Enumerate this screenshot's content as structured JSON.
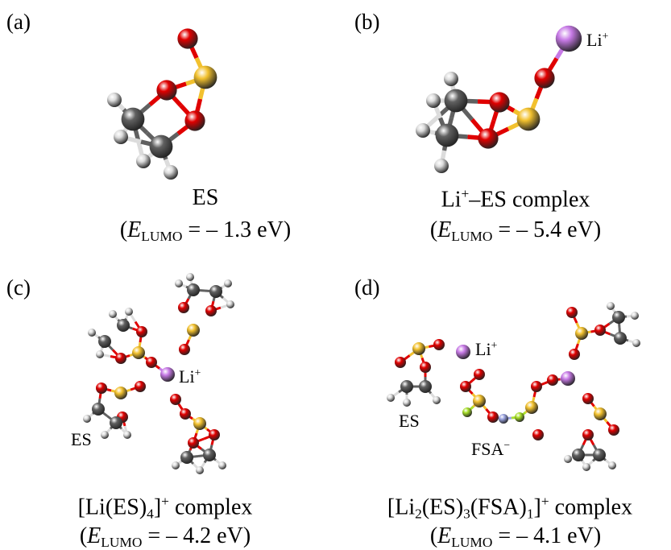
{
  "panels": [
    {
      "label": "(a)",
      "name": [
        "ES"
      ],
      "energy": [
        "(",
        "E",
        "LUMO",
        " = – 1.3 eV)"
      ],
      "annotations": []
    },
    {
      "label": "(b)",
      "name": [
        "Li",
        "+",
        "–ES complex"
      ],
      "energy": [
        "(",
        "E",
        "LUMO",
        " = – 5.4 eV)"
      ],
      "annotations": [
        [
          "Li",
          "+"
        ]
      ]
    },
    {
      "label": "(c)",
      "name": [
        "[Li(ES)",
        "4",
        "]",
        "+",
        " complex"
      ],
      "energy": [
        "(",
        "E",
        "LUMO",
        " = – 4.2 eV)"
      ],
      "annotations": [
        [
          "Li",
          "+"
        ],
        [
          "ES"
        ]
      ]
    },
    {
      "label": "(d)",
      "name": [
        "[Li",
        "2",
        "(ES)",
        "3",
        "(FSA)",
        "1",
        "]",
        "+",
        " complex"
      ],
      "energy": [
        "(",
        "E",
        "LUMO",
        " = – 4.1 eV)"
      ],
      "annotations": [
        [
          "ES"
        ],
        [
          "Li",
          "+"
        ],
        [
          "FSA",
          "−"
        ]
      ]
    }
  ]
}
